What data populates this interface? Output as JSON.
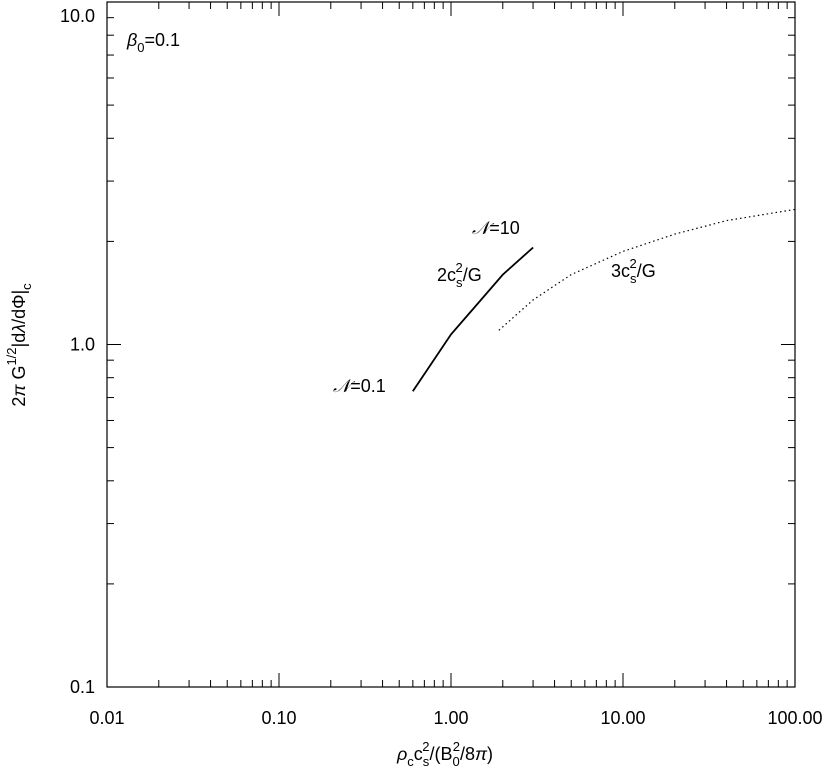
{
  "chart_data": {
    "type": "line",
    "xlog": true,
    "ylog": true,
    "xlim": [
      0.01,
      100
    ],
    "ylim": [
      0.1,
      10
    ],
    "xticks": [
      {
        "value": 0.01,
        "label": "0.01"
      },
      {
        "value": 0.1,
        "label": "0.10"
      },
      {
        "value": 1,
        "label": "1.00"
      },
      {
        "value": 10,
        "label": "10.00"
      },
      {
        "value": 100,
        "label": "100.00"
      }
    ],
    "yticks": [
      0.1,
      {
        "value": 1,
        "label": "1.0"
      },
      {
        "value": 10,
        "label": "10.0"
      }
    ],
    "xlabel": [
      {
        "text": "ρ",
        "italic": true
      },
      {
        "text": "c",
        "shift": "sub"
      },
      {
        "text": "c"
      },
      {
        "text": "s",
        "shift": "sub"
      },
      {
        "text": "2",
        "shift": "sup"
      },
      {
        "text": "/(B"
      },
      {
        "text": "0",
        "shift": "sub"
      },
      {
        "text": "2",
        "shift": "sup"
      },
      {
        "text": "/8"
      },
      {
        "text": "π",
        "italic": true
      },
      {
        "text": ")"
      }
    ],
    "ylabel": [
      {
        "text": "2"
      },
      {
        "text": "π",
        "italic": true
      },
      {
        "text": " G"
      },
      {
        "text": "1/2",
        "shift": "sup"
      },
      {
        "text": "|d"
      },
      {
        "text": "λ",
        "italic": true
      },
      {
        "text": "/dΦ|"
      },
      {
        "text": "c",
        "shift": "sub"
      }
    ],
    "series": [
      {
        "color": "#000000",
        "dash": "solid",
        "x": [
          0.6,
          1.0,
          1.4,
          2.0,
          3.0
        ],
        "values": [
          0.73,
          1.07,
          1.3,
          1.6,
          1.92
        ]
      },
      {
        "color": "#000000",
        "dash": "dotted",
        "x": [
          1.9,
          3,
          5,
          10,
          20,
          40,
          100
        ],
        "values": [
          1.1,
          1.35,
          1.6,
          1.87,
          2.1,
          2.3,
          2.48
        ]
      }
    ],
    "annotations": [
      [
        {
          "text": "β",
          "italic": true
        },
        {
          "text": "0",
          "shift": "sub"
        },
        {
          "text": "=0.1"
        }
      ],
      [
        {
          "text": "𝒩",
          "italic": true
        },
        {
          "text": "=10"
        }
      ],
      [
        {
          "text": "2c"
        },
        {
          "text": "s",
          "shift": "sub"
        },
        {
          "text": "2",
          "shift": "sup"
        },
        {
          "text": "/G"
        }
      ],
      [
        {
          "text": "3c"
        },
        {
          "text": "s",
          "shift": "sub"
        },
        {
          "text": "2",
          "shift": "sup"
        },
        {
          "text": "/G"
        }
      ],
      [
        {
          "text": "𝒩",
          "italic": true
        },
        {
          "text": "=0.1"
        }
      ]
    ]
  }
}
